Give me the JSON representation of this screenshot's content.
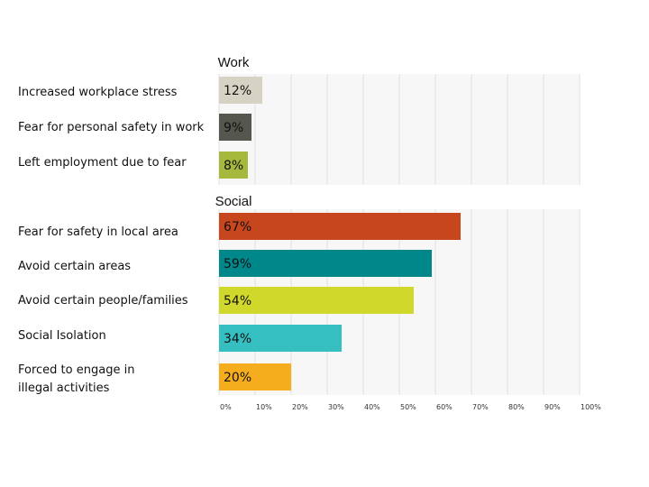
{
  "chart_data": {
    "type": "bar",
    "orientation": "horizontal",
    "grid": true,
    "xlim": [
      0,
      100
    ],
    "x_ticks": [
      "0%",
      "10%",
      "20%",
      "30%",
      "40%",
      "50%",
      "60%",
      "70%",
      "80%",
      "90%",
      "100%"
    ],
    "groups": [
      {
        "title": "Work",
        "categories": [
          "Increased workplace stress",
          "Fear for personal safety in work",
          "Left employment due to fear"
        ],
        "values": [
          12,
          9,
          8
        ],
        "value_labels": [
          "12%",
          "9%",
          "8%"
        ],
        "colors": [
          "#d6d2c4",
          "#55564d",
          "#a7b93c"
        ]
      },
      {
        "title": "Social",
        "categories": [
          "Fear for safety in local area",
          "Avoid certain areas",
          "Avoid certain people/families",
          "Social Isolation",
          "Forced to engage in illegal activities"
        ],
        "values": [
          67,
          59,
          54,
          34,
          20
        ],
        "value_labels": [
          "67%",
          "59%",
          "54%",
          "34%",
          "20%"
        ],
        "colors": [
          "#c8461e",
          "#00878a",
          "#d0d82b",
          "#36bfc0",
          "#f5ad1d"
        ]
      }
    ]
  }
}
